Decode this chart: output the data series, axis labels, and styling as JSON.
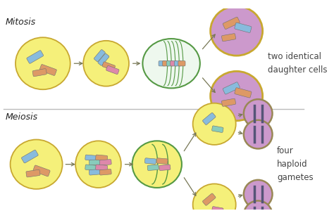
{
  "bg_color": "#ffffff",
  "cell_yellow": "#f5f07a",
  "cell_purple": "#cc99cc",
  "cell_border_yellow": "#c8a830",
  "cell_border_green": "#559944",
  "cell_border_brown": "#998855",
  "chr_blue": "#88bbdd",
  "chr_orange": "#dd9966",
  "chr_pink": "#dd88aa",
  "chr_teal": "#88ccbb",
  "arrow_color": "#777755",
  "title_mitosis": "Mitosis",
  "title_meiosis": "Meiosis",
  "label_mitosis": "two identical\ndaughter cells",
  "label_meiosis": "four\nhaploid\ngametes",
  "line_color": "#bbbbbb"
}
